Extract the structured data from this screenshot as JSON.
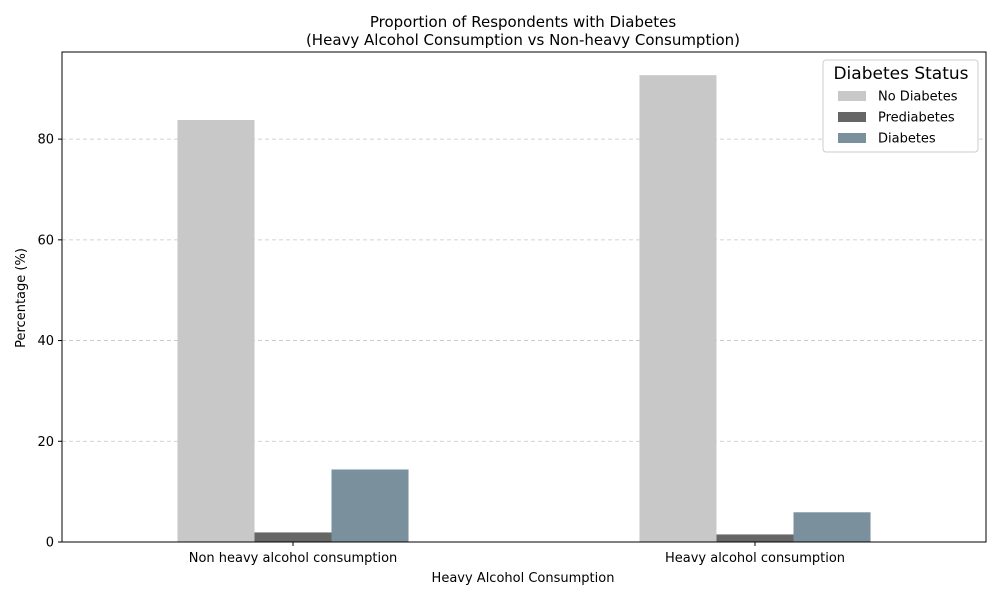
{
  "chart_data": {
    "type": "bar",
    "title": "Proportion of Respondents with Diabetes",
    "subtitle": "(Heavy Alcohol Consumption vs Non-heavy Consumption)",
    "xlabel": "Heavy Alcohol Consumption",
    "ylabel": "Percentage (%)",
    "categories": [
      "Non heavy alcohol consumption",
      "Heavy alcohol consumption"
    ],
    "series": [
      {
        "name": "No Diabetes",
        "values": [
          83.8,
          92.7
        ],
        "color": "#c8c8c8"
      },
      {
        "name": "Prediabetes",
        "values": [
          1.9,
          1.5
        ],
        "color": "#666666"
      },
      {
        "name": "Diabetes",
        "values": [
          14.4,
          5.9
        ],
        "color": "#7a909c"
      }
    ],
    "ylim": [
      0,
      97.3
    ],
    "yticks": [
      0,
      20,
      40,
      60,
      80
    ],
    "grid": {
      "y": true,
      "style": "dashed",
      "color": "#c4c4c4"
    },
    "legend": {
      "title": "Diabetes Status",
      "placement": "top-right"
    }
  }
}
